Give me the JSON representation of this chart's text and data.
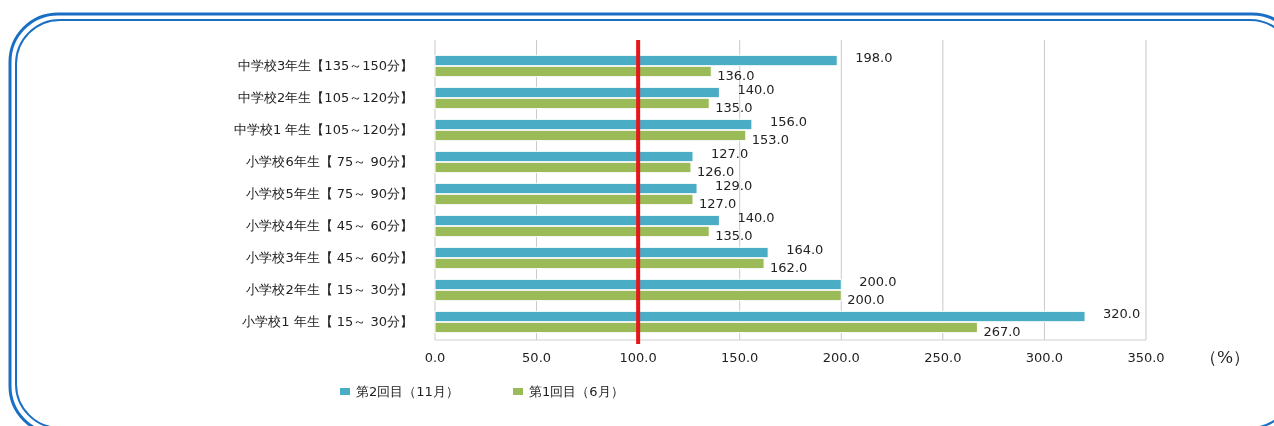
{
  "chart_data": {
    "type": "bar",
    "orientation": "horizontal",
    "categories": [
      "中学校3年生【135～150分】",
      "中学校2年生【105～120分】",
      "中学校1 年生【105～120分】",
      "小学校6年生【 75～ 90分】",
      "小学校5年生【 75～ 90分】",
      "小学校4年生【 45～ 60分】",
      "小学校3年生【 45～ 60分】",
      "小学校2年生【 15～ 30分】",
      "小学校1 年生【 15～ 30分】"
    ],
    "series": [
      {
        "name": "第2回目（11月）",
        "color": "#4bacc6",
        "values": [
          198,
          140,
          156,
          127,
          129,
          140,
          164,
          200,
          320
        ],
        "value_labels": [
          "198.0",
          "140.0",
          "156.0",
          "127.0",
          "129.0",
          "140.0",
          "164.0",
          "200.0",
          "320.0"
        ]
      },
      {
        "name": "第1回目（6月）",
        "color": "#9bbb59",
        "values": [
          136,
          135,
          153,
          126,
          127,
          135,
          162,
          200,
          267
        ],
        "value_labels": [
          "136.0",
          "135.0",
          "153.0",
          "126.0",
          "127.0",
          "135.0",
          "162.0",
          "200.0",
          "267.0"
        ]
      }
    ],
    "xlim": [
      0,
      350
    ],
    "xticks": [
      {
        "value": 0,
        "label": "0.0"
      },
      {
        "value": 50,
        "label": "50.0"
      },
      {
        "value": 100,
        "label": "100.0"
      },
      {
        "value": 150,
        "label": "150.0"
      },
      {
        "value": 200,
        "label": "200.0"
      },
      {
        "value": 250,
        "label": "250.0"
      },
      {
        "value": 300,
        "label": "300.0"
      },
      {
        "value": 350,
        "label": "350.0"
      }
    ],
    "xlabel": "（%）",
    "grid": "x",
    "legend": "bottom",
    "ref_lines": [
      {
        "axis": "x",
        "value": 100,
        "color": "#e8161a"
      }
    ]
  }
}
